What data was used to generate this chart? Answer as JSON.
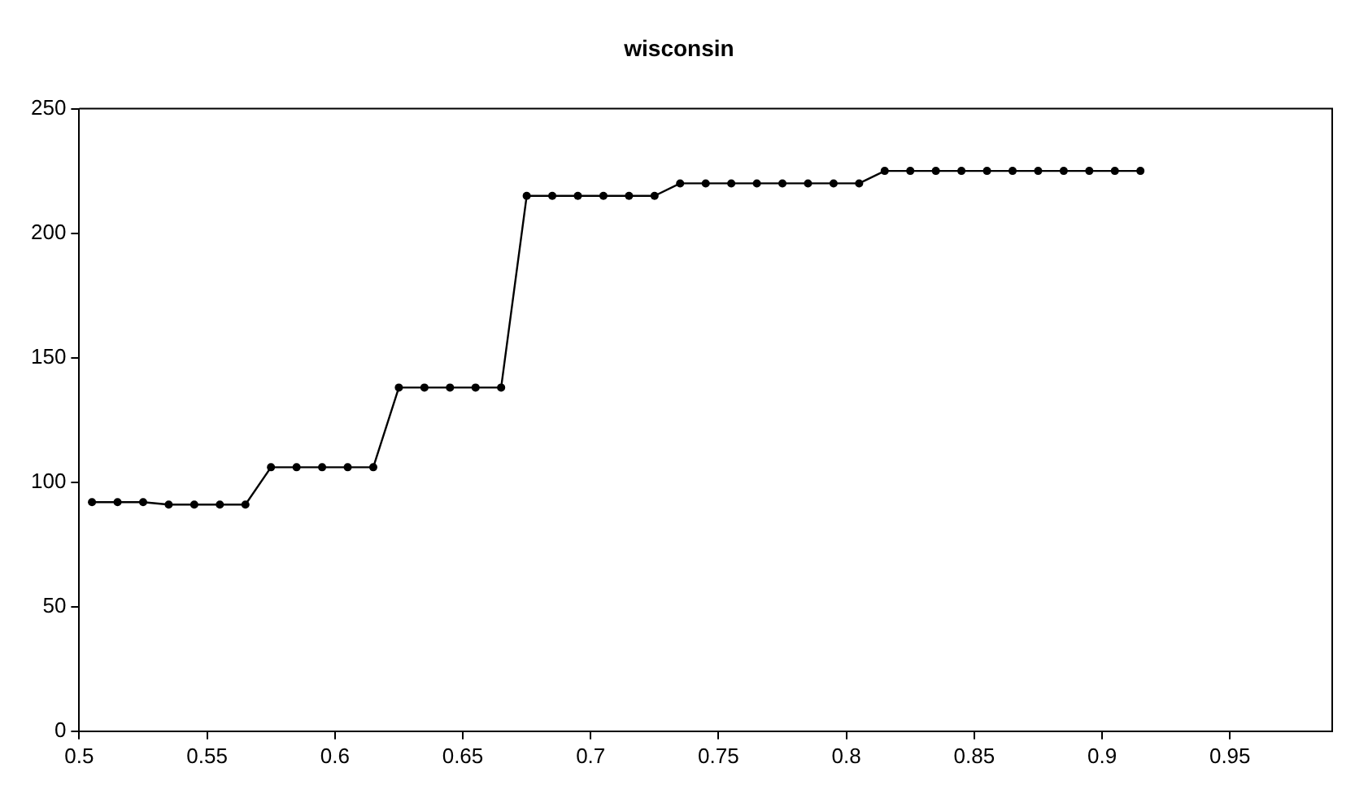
{
  "chart_data": {
    "type": "line",
    "title": "wisconsin",
    "x": [
      0.505,
      0.515,
      0.525,
      0.535,
      0.545,
      0.555,
      0.565,
      0.575,
      0.585,
      0.595,
      0.605,
      0.615,
      0.625,
      0.635,
      0.645,
      0.655,
      0.665,
      0.675,
      0.685,
      0.695,
      0.705,
      0.715,
      0.725,
      0.735,
      0.745,
      0.755,
      0.765,
      0.775,
      0.785,
      0.795,
      0.805,
      0.815,
      0.825,
      0.835,
      0.845,
      0.855,
      0.865,
      0.875,
      0.885,
      0.895,
      0.905,
      0.915
    ],
    "series": [
      {
        "color": "#000000",
        "values": [
          92,
          92,
          92,
          91,
          91,
          91,
          91,
          106,
          106,
          106,
          106,
          106,
          138,
          138,
          138,
          138,
          138,
          215,
          215,
          215,
          215,
          215,
          215,
          220,
          220,
          220,
          220,
          220,
          220,
          220,
          220,
          225,
          225,
          225,
          225,
          225,
          225,
          225,
          225,
          225,
          225,
          225
        ]
      }
    ],
    "xlim": [
      0.5,
      0.99
    ],
    "xticks": [
      0.5,
      0.55,
      0.6,
      0.65,
      0.7,
      0.75,
      0.8,
      0.85,
      0.9,
      0.95
    ],
    "ylim": [
      0,
      250
    ],
    "yticks": [
      0,
      50,
      100,
      150,
      200,
      250
    ],
    "grid": false,
    "legend": false,
    "marker": "circle",
    "line_style": "solid"
  }
}
